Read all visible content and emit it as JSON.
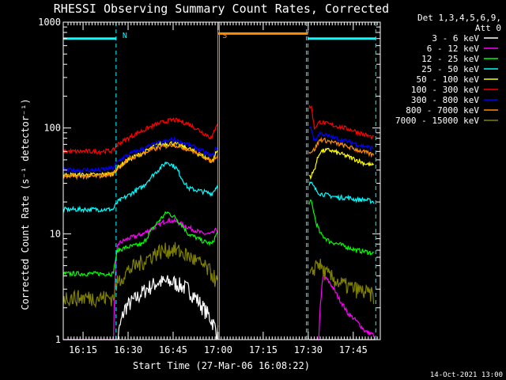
{
  "chart_data": {
    "type": "line",
    "title": "RHESSI Observing Summary Count Rates, Corrected",
    "xlabel": "Start Time (27-Mar-06 16:08:22)",
    "ylabel": "Corrected Count Rate (s⁻¹ detector⁻¹)",
    "yscale": "log",
    "xlim_min": [
      8.4,
      114.0
    ],
    "ylim": [
      1,
      1000
    ],
    "x_ticks": [
      {
        "min": 15.0,
        "label": "16:15"
      },
      {
        "min": 30.0,
        "label": "16:30"
      },
      {
        "min": 45.0,
        "label": "16:45"
      },
      {
        "min": 60.0,
        "label": "17:00"
      },
      {
        "min": 75.0,
        "label": "17:15"
      },
      {
        "min": 90.0,
        "label": "17:30"
      },
      {
        "min": 105.0,
        "label": "17:45"
      }
    ],
    "y_ticks": [
      {
        "value": 1,
        "label": "1"
      },
      {
        "value": 10,
        "label": "10"
      },
      {
        "value": 100,
        "label": "100"
      },
      {
        "value": 1000,
        "label": "1000"
      }
    ],
    "grid": false,
    "legend_position": "right",
    "legend_header": [
      "Det 1,3,4,5,6,9,",
      "Att 0"
    ],
    "footer_date": "14-Oct-2021 13:00",
    "annotations": [
      {
        "text": "N",
        "x_min": 26.0,
        "color": "#00ffff"
      },
      {
        "text": "S",
        "x_min": 59.3,
        "color": "#ff8c00"
      }
    ],
    "flags": [
      {
        "name": "night",
        "color": "#00ffff",
        "y": 700,
        "x0": 8.4,
        "x1": 26.0
      },
      {
        "name": "saa",
        "color": "#ff8c00",
        "y": 780,
        "x0": 59.9,
        "x1": 89.9
      },
      {
        "name": "night",
        "color": "#00ffff",
        "y": 700,
        "x0": 89.9,
        "x1": 112.5
      }
    ],
    "vlines": [
      {
        "x_min": 26.0,
        "color": "#00ffff",
        "dashed": true
      },
      {
        "x_min": 59.9,
        "color": "#ff8c00",
        "dashed": false
      },
      {
        "x_min": 60.4,
        "color": "#ff8c00",
        "dashed": false
      },
      {
        "x_min": 89.4,
        "color": "#00ffff",
        "dashed": true
      },
      {
        "x_min": 89.9,
        "color": "#00ffff",
        "dashed": true
      },
      {
        "x_min": 112.5,
        "color": "#00ffff",
        "dashed": true
      }
    ],
    "series": [
      {
        "name": "3 - 6 keV",
        "color": "#ffffff",
        "x": [
          8.4,
          20,
          25,
          26.5,
          29,
          33,
          36,
          40,
          45,
          50,
          55,
          58,
          59.5,
          91,
          93,
          95,
          98,
          101,
          104,
          107,
          110,
          112.5
        ],
        "y": [
          0,
          0,
          0,
          1,
          2,
          2.5,
          3,
          3.5,
          3.5,
          3,
          2,
          1.5,
          1.2,
          0,
          0,
          0,
          0,
          0,
          0,
          0,
          0,
          0
        ]
      },
      {
        "name": "6 - 12 keV",
        "color": "#ff00ff",
        "x": [
          8.4,
          20,
          25,
          26.5,
          30,
          35,
          40,
          43,
          46,
          50,
          55,
          58,
          59.5,
          91,
          93,
          95,
          97,
          100,
          103,
          106,
          109,
          112
        ],
        "y": [
          0,
          0,
          0,
          8,
          9,
          10,
          12,
          13.5,
          13,
          11.5,
          10,
          10,
          11,
          0,
          0,
          4,
          3.5,
          2.5,
          1.8,
          1.5,
          1.2,
          1.1
        ]
      },
      {
        "name": "12 - 25 keV",
        "color": "#00ff00",
        "x": [
          8.4,
          20,
          25,
          26.5,
          30,
          35,
          40,
          43,
          46,
          50,
          55,
          58,
          59.5,
          91,
          92.5,
          94,
          97,
          100,
          103,
          106,
          109,
          112
        ],
        "y": [
          4.2,
          4.2,
          4.2,
          7,
          7.5,
          8,
          13,
          16,
          14,
          10,
          8.5,
          8,
          10,
          20,
          13,
          10,
          8.5,
          8,
          7.5,
          7,
          6.8,
          6.5
        ]
      },
      {
        "name": "25 - 50 keV",
        "color": "#00ffff",
        "x": [
          8.4,
          20,
          25,
          26.5,
          30,
          35,
          40,
          43,
          46,
          48,
          50,
          55,
          58,
          59.5,
          91,
          92.5,
          94,
          97,
          100,
          103,
          106,
          109,
          112
        ],
        "y": [
          17,
          17,
          17,
          20,
          23,
          28,
          40,
          48,
          42,
          33,
          27,
          25,
          24,
          28,
          30,
          26,
          24,
          23,
          22,
          22,
          21,
          21,
          20
        ]
      },
      {
        "name": "50 - 100 keV",
        "color": "#ffff00",
        "x": [
          8.4,
          20,
          25,
          26.5,
          30,
          35,
          40,
          45,
          50,
          55,
          58,
          59.5,
          91,
          92,
          94,
          97,
          100,
          103,
          106,
          109,
          112
        ],
        "y": [
          36,
          36,
          37,
          42,
          50,
          58,
          70,
          72,
          64,
          54,
          48,
          60,
          35,
          40,
          60,
          62,
          58,
          54,
          50,
          46,
          44
        ]
      },
      {
        "name": "100 - 300 keV",
        "color": "#ff0000",
        "x": [
          8.4,
          20,
          25,
          26.5,
          30,
          35,
          40,
          45,
          50,
          55,
          58,
          59.5,
          91,
          92,
          94,
          96,
          99,
          102,
          105,
          108,
          112
        ],
        "y": [
          60,
          60,
          61,
          70,
          80,
          95,
          110,
          120,
          110,
          90,
          80,
          110,
          160,
          100,
          115,
          110,
          105,
          100,
          95,
          88,
          80
        ]
      },
      {
        "name": "300 - 800 keV",
        "color": "#0000ff",
        "x": [
          8.4,
          20,
          25,
          26.5,
          30,
          35,
          40,
          45,
          50,
          55,
          58,
          59.5,
          91,
          92,
          94,
          96,
          99,
          102,
          105,
          108,
          112
        ],
        "y": [
          40,
          40,
          42,
          48,
          56,
          64,
          72,
          78,
          70,
          60,
          54,
          65,
          100,
          75,
          90,
          85,
          80,
          76,
          72,
          68,
          64
        ]
      },
      {
        "name": "800 - 7000 keV",
        "color": "#ff8c00",
        "x": [
          8.4,
          20,
          25,
          26.5,
          30,
          35,
          40,
          45,
          50,
          55,
          58,
          59.5,
          91,
          92,
          94,
          96,
          99,
          102,
          105,
          108,
          112
        ],
        "y": [
          35,
          35,
          37,
          42,
          50,
          58,
          65,
          70,
          63,
          54,
          48,
          55,
          60,
          62,
          78,
          76,
          72,
          68,
          64,
          60,
          55
        ]
      },
      {
        "name": "7000 - 15000 keV",
        "color": "#808000",
        "x": [
          8.4,
          20,
          25,
          26.5,
          30,
          35,
          40,
          45,
          50,
          55,
          58,
          59.5,
          91,
          93,
          95,
          97,
          100,
          103,
          106,
          109,
          112
        ],
        "y": [
          2.5,
          2.5,
          2.5,
          3.5,
          4.5,
          5.5,
          6.8,
          7.2,
          6.2,
          5,
          4.2,
          3.5,
          4,
          5.5,
          4.5,
          4,
          3.5,
          3.2,
          3,
          2.8,
          2.6
        ]
      }
    ]
  }
}
